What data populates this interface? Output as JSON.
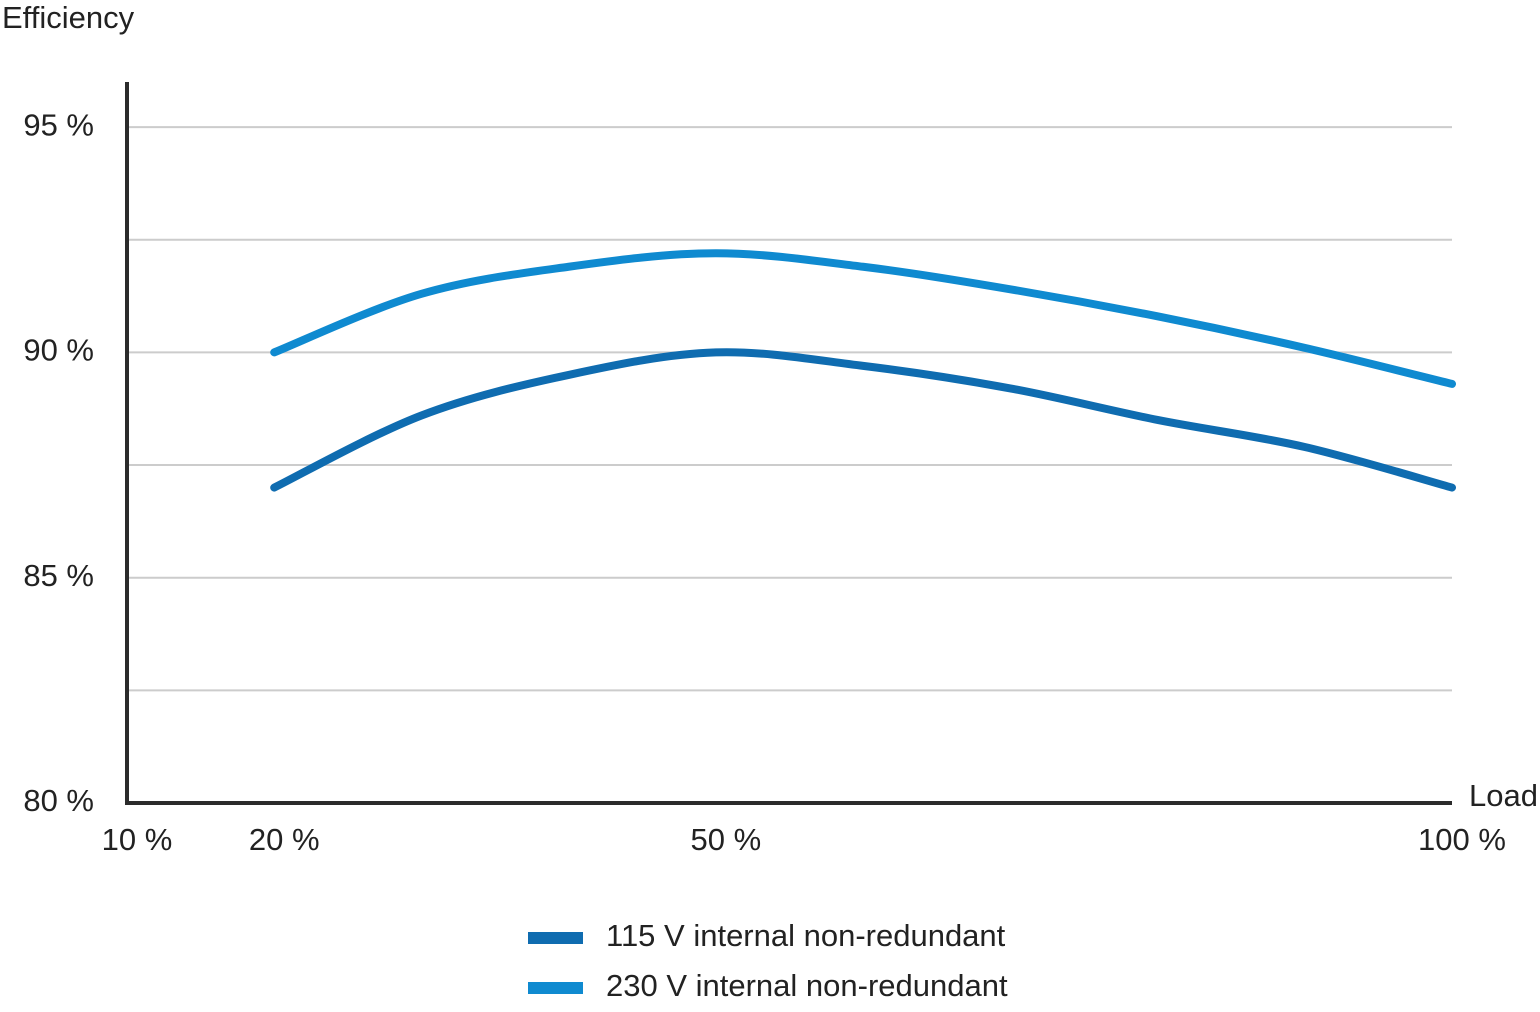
{
  "chart_data": {
    "type": "line",
    "y_label": "Efficiency",
    "x_label": "Load",
    "xlim": [
      10,
      100
    ],
    "xticks": [
      {
        "value": 10,
        "label": "10 %"
      },
      {
        "value": 20,
        "label": "20 %"
      },
      {
        "value": 50,
        "label": "50 %"
      },
      {
        "value": 100,
        "label": "100 %"
      }
    ],
    "ylim": [
      80,
      96
    ],
    "yticks": [
      {
        "value": 80,
        "label": "80 %"
      },
      {
        "value": 85,
        "label": "85 %"
      },
      {
        "value": 90,
        "label": "90 %"
      },
      {
        "value": 95,
        "label": "95 %"
      }
    ],
    "minor_yticks": [
      82.5,
      87.5,
      92.5
    ],
    "grid": true,
    "x": [
      20,
      30,
      40,
      50,
      60,
      70,
      80,
      90,
      100
    ],
    "series": [
      {
        "name": "115 V internal non-redundant",
        "color": "#0f6cb0",
        "values": [
          87.0,
          88.6,
          89.5,
          90.0,
          89.7,
          89.2,
          88.5,
          87.9,
          87.0
        ]
      },
      {
        "name": "230 V internal non-redundant",
        "color": "#0f8ad0",
        "values": [
          90.0,
          91.3,
          91.9,
          92.2,
          91.9,
          91.4,
          90.8,
          90.1,
          89.3
        ]
      }
    ]
  }
}
